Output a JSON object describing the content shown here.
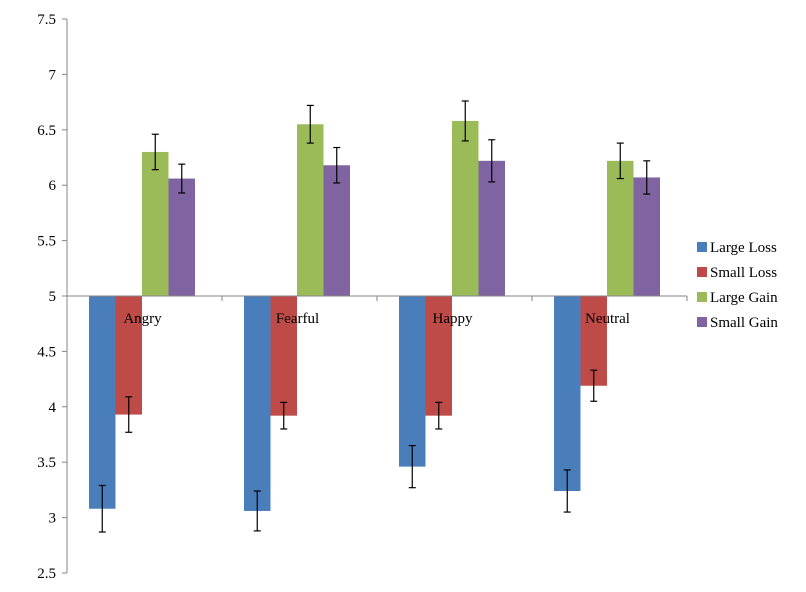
{
  "chart_data": {
    "type": "bar",
    "title": "",
    "xlabel": "",
    "ylabel": "",
    "ylim": [
      2.5,
      7.5
    ],
    "baseline": 5,
    "y_ticks": [
      "2.5",
      "3",
      "3.5",
      "4",
      "4.5",
      "5",
      "5.5",
      "6",
      "6.5",
      "7",
      "7.5"
    ],
    "categories": [
      "Angry",
      "Fearful",
      "Happy",
      "Neutral"
    ],
    "series": [
      {
        "name": "Large Loss",
        "color": "#4A7EBB",
        "values": [
          3.08,
          3.06,
          3.46,
          3.24
        ],
        "errors": [
          0.21,
          0.18,
          0.19,
          0.19
        ]
      },
      {
        "name": "Small Loss",
        "color": "#BE4B48",
        "values": [
          3.93,
          3.92,
          3.92,
          4.19
        ],
        "errors": [
          0.16,
          0.12,
          0.12,
          0.14
        ]
      },
      {
        "name": "Large Gain",
        "color": "#9BBB59",
        "values": [
          6.3,
          6.55,
          6.58,
          6.22
        ],
        "errors": [
          0.16,
          0.17,
          0.18,
          0.16
        ]
      },
      {
        "name": "Small Gain",
        "color": "#8064A2",
        "values": [
          6.06,
          6.18,
          6.22,
          6.07
        ],
        "errors": [
          0.13,
          0.16,
          0.19,
          0.15
        ]
      }
    ],
    "legend_position": "right"
  }
}
